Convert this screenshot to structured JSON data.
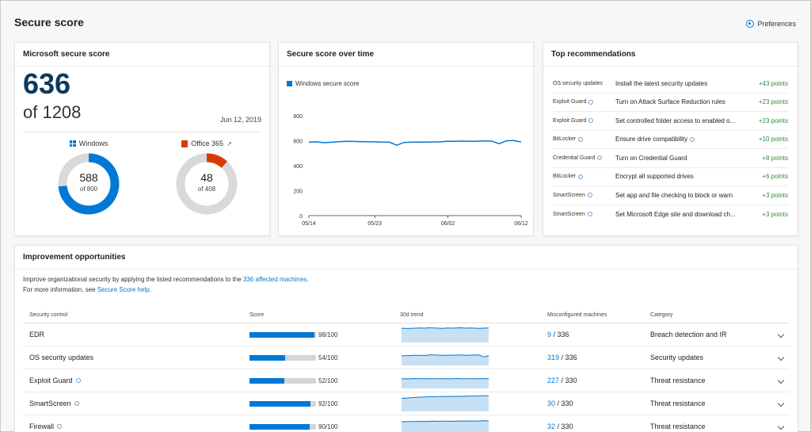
{
  "page": {
    "title": "Secure score",
    "preferences_label": "Preferences"
  },
  "score_card": {
    "title": "Microsoft secure score",
    "score": "636",
    "of_total": "of 1208",
    "date": "Jun 12, 2019",
    "windows": {
      "label": "Windows",
      "value": "588",
      "of": "of 800",
      "fraction": 0.735,
      "color": "#0078d4"
    },
    "office": {
      "label": "Office 365",
      "value": "48",
      "of": "of 408",
      "fraction": 0.118,
      "color": "#d83b01"
    }
  },
  "time_card": {
    "title": "Secure score over time",
    "legend": "Windows secure score",
    "chart_data": {
      "type": "line",
      "series": [
        {
          "name": "Windows secure score",
          "x": [
            "05/14",
            "05/15",
            "05/16",
            "05/17",
            "05/18",
            "05/19",
            "05/20",
            "05/21",
            "05/22",
            "05/23",
            "05/24",
            "05/25",
            "05/26",
            "05/27",
            "05/28",
            "05/29",
            "05/30",
            "05/31",
            "06/01",
            "06/02",
            "06/03",
            "06/04",
            "06/05",
            "06/06",
            "06/07",
            "06/08",
            "06/09",
            "06/10",
            "06/11",
            "06/12"
          ],
          "y": [
            588,
            590,
            583,
            586,
            590,
            594,
            593,
            592,
            590,
            590,
            588,
            587,
            563,
            585,
            587,
            588,
            588,
            589,
            590,
            595,
            594,
            596,
            594,
            595,
            597,
            596,
            575,
            598,
            600,
            588
          ]
        }
      ],
      "x_ticks": [
        "05/14",
        "05/23",
        "06/02",
        "06/12"
      ],
      "y_ticks": [
        "0",
        "200",
        "400",
        "600",
        "800"
      ],
      "ylim": [
        0,
        900
      ],
      "color": "#0078d4"
    }
  },
  "recs_card": {
    "title": "Top recommendations",
    "items": [
      {
        "control": "OS security updates",
        "info": false,
        "text": "Install the latest security updates",
        "text_info": false,
        "points": "+43 points"
      },
      {
        "control": "Exploit Guard",
        "info": true,
        "text": "Turn on Attack Surface Reduction rules",
        "text_info": false,
        "points": "+23 points"
      },
      {
        "control": "Exploit Guard",
        "info": true,
        "text": "Set controlled folder access to enabled o...",
        "text_info": false,
        "points": "+23 points"
      },
      {
        "control": "BitLocker",
        "info": true,
        "text": "Ensure drive compatibility",
        "text_info": true,
        "points": "+10 points"
      },
      {
        "control": "Credential Guard",
        "info": true,
        "text": "Turn on Credential Guard",
        "text_info": false,
        "points": "+8 points"
      },
      {
        "control": "BitLocker",
        "info": true,
        "text": "Encrypt all supported drives",
        "text_info": false,
        "points": "+6 points"
      },
      {
        "control": "SmartScreen",
        "info": true,
        "text": "Set app and file checking to block or warn",
        "text_info": false,
        "points": "+3 points"
      },
      {
        "control": "SmartScreen",
        "info": true,
        "text": "Set Microsoft Edge site and download ch...",
        "text_info": false,
        "points": "+3 points"
      }
    ]
  },
  "improve_card": {
    "title": "Improvement opportunities",
    "desc_prefix": "Improve organizational security by applying the listed recommendations to the ",
    "desc_link": "336 affected machines",
    "desc_suffix": ".",
    "help_prefix": "For more information, see ",
    "help_link": "Secure Score help",
    "help_suffix": ".",
    "headers": {
      "control": "Security control",
      "score": "Score",
      "trend": "30d trend",
      "mis": "Misconfigured machines",
      "cat": "Category"
    },
    "rows": [
      {
        "control": "EDR",
        "info": false,
        "score": "98/100",
        "fraction": 0.98,
        "mis_link": "9",
        "mis_total": " / 336",
        "category": "Breach detection and IR",
        "trend": [
          0.82,
          0.8,
          0.81,
          0.82,
          0.83,
          0.82,
          0.84,
          0.83,
          0.82,
          0.81,
          0.83,
          0.82,
          0.83,
          0.84,
          0.82,
          0.83,
          0.82,
          0.81,
          0.82,
          0.83
        ]
      },
      {
        "control": "OS security updates",
        "info": false,
        "score": "54/100",
        "fraction": 0.54,
        "mis_link": "319",
        "mis_total": " / 336",
        "category": "Security updates",
        "trend": [
          0.55,
          0.56,
          0.57,
          0.58,
          0.58,
          0.57,
          0.6,
          0.6,
          0.59,
          0.58,
          0.58,
          0.59,
          0.59,
          0.6,
          0.58,
          0.59,
          0.6,
          0.59,
          0.48,
          0.57
        ]
      },
      {
        "control": "Exploit Guard",
        "info": true,
        "score": "52/100",
        "fraction": 0.52,
        "mis_link": "227",
        "mis_total": " / 330",
        "category": "Threat resistance",
        "trend": [
          0.55,
          0.56,
          0.55,
          0.57,
          0.56,
          0.56,
          0.56,
          0.55,
          0.56,
          0.56,
          0.55,
          0.56,
          0.57,
          0.56,
          0.56,
          0.55,
          0.56,
          0.56,
          0.57,
          0.56
        ]
      },
      {
        "control": "SmartScreen",
        "info": true,
        "score": "92/100",
        "fraction": 0.92,
        "mis_link": "30",
        "mis_total": " / 330",
        "category": "Threat resistance",
        "trend": [
          0.75,
          0.76,
          0.78,
          0.8,
          0.82,
          0.82,
          0.84,
          0.84,
          0.85,
          0.85,
          0.86,
          0.86,
          0.87,
          0.86,
          0.87,
          0.88,
          0.88,
          0.89,
          0.9,
          0.9
        ]
      },
      {
        "control": "Firewall",
        "info": true,
        "score": "90/100",
        "fraction": 0.9,
        "mis_link": "32",
        "mis_total": " / 330",
        "category": "Threat resistance",
        "trend": [
          0.72,
          0.73,
          0.74,
          0.74,
          0.75,
          0.74,
          0.75,
          0.76,
          0.75,
          0.76,
          0.76,
          0.75,
          0.76,
          0.77,
          0.76,
          0.77,
          0.76,
          0.77,
          0.78,
          0.77
        ]
      }
    ]
  }
}
